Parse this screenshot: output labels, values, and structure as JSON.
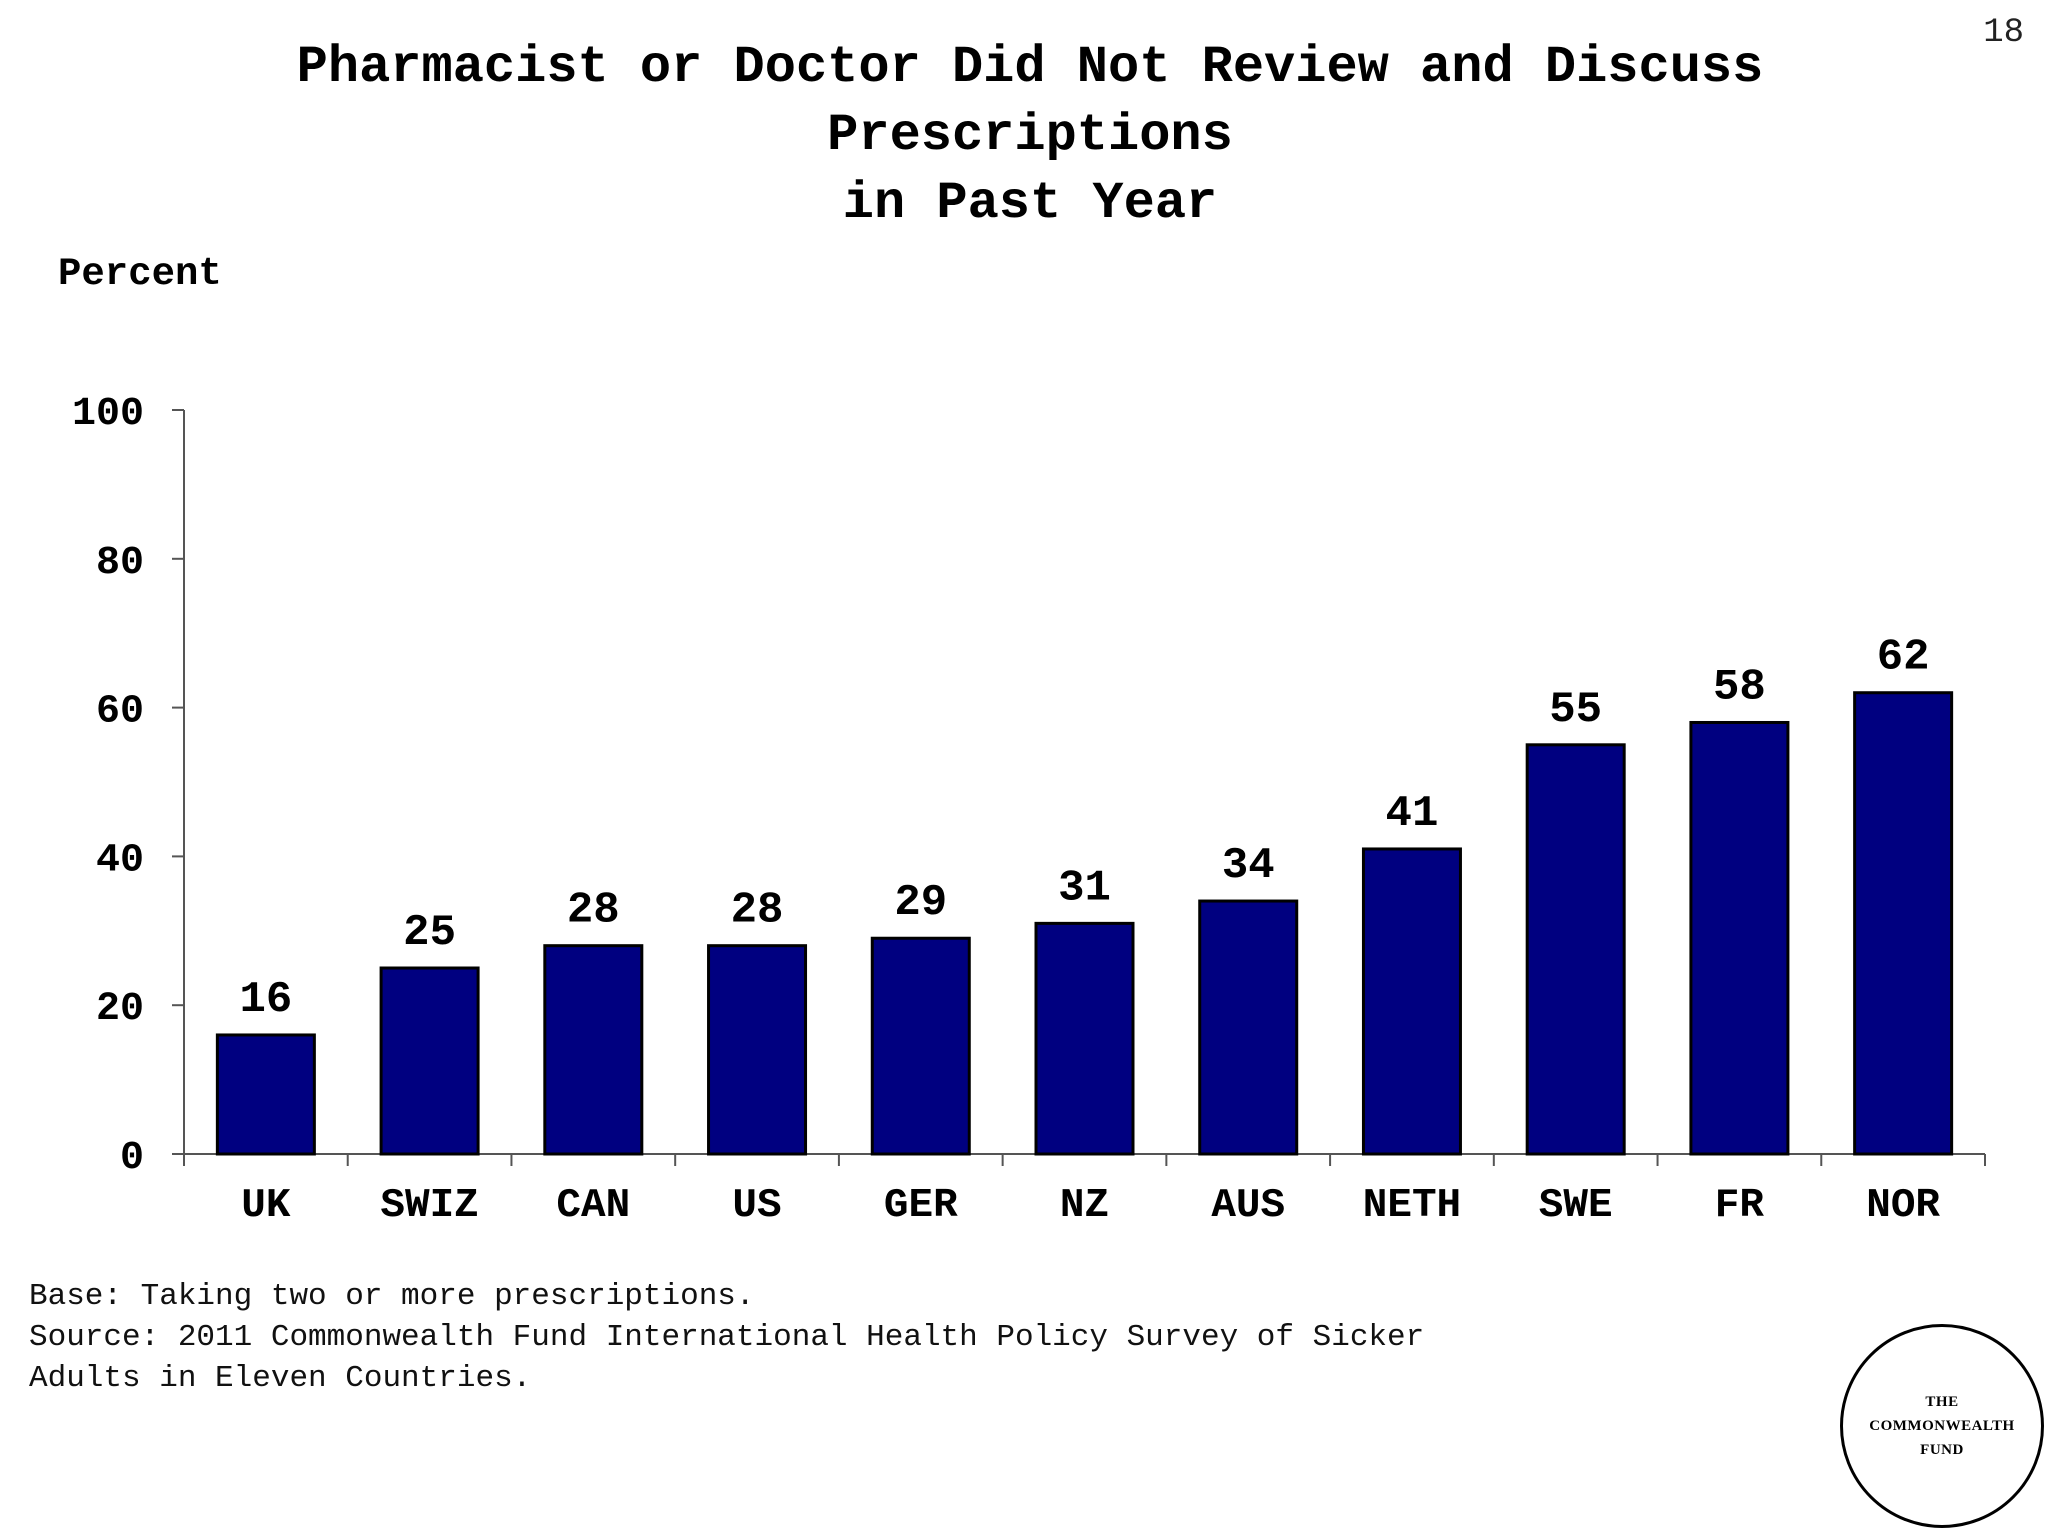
{
  "slide_number": "18",
  "title_lines": [
    "Pharmacist or Doctor Did Not Review and Discuss",
    "Prescriptions",
    "in Past Year"
  ],
  "footnote_lines": [
    "Base: Taking two or more prescriptions.",
    "Source: 2011 Commonwealth Fund International Health Policy Survey of Sicker",
    "Adults in Eleven Countries."
  ],
  "logo_lines": [
    "THE",
    "COMMONWEALTH",
    "FUND"
  ],
  "colors": {
    "bar": "#000080",
    "bar_border": "#000000"
  },
  "chart_data": {
    "type": "bar",
    "ylabel": "Percent",
    "ylim": [
      0,
      100
    ],
    "yticks": [
      0,
      20,
      40,
      60,
      80,
      100
    ],
    "grid": false,
    "categories": [
      "UK",
      "SWIZ",
      "CAN",
      "US",
      "GER",
      "NZ",
      "AUS",
      "NETH",
      "SWE",
      "FR",
      "NOR"
    ],
    "values": [
      16,
      25,
      28,
      28,
      29,
      31,
      34,
      41,
      55,
      58,
      62
    ]
  }
}
